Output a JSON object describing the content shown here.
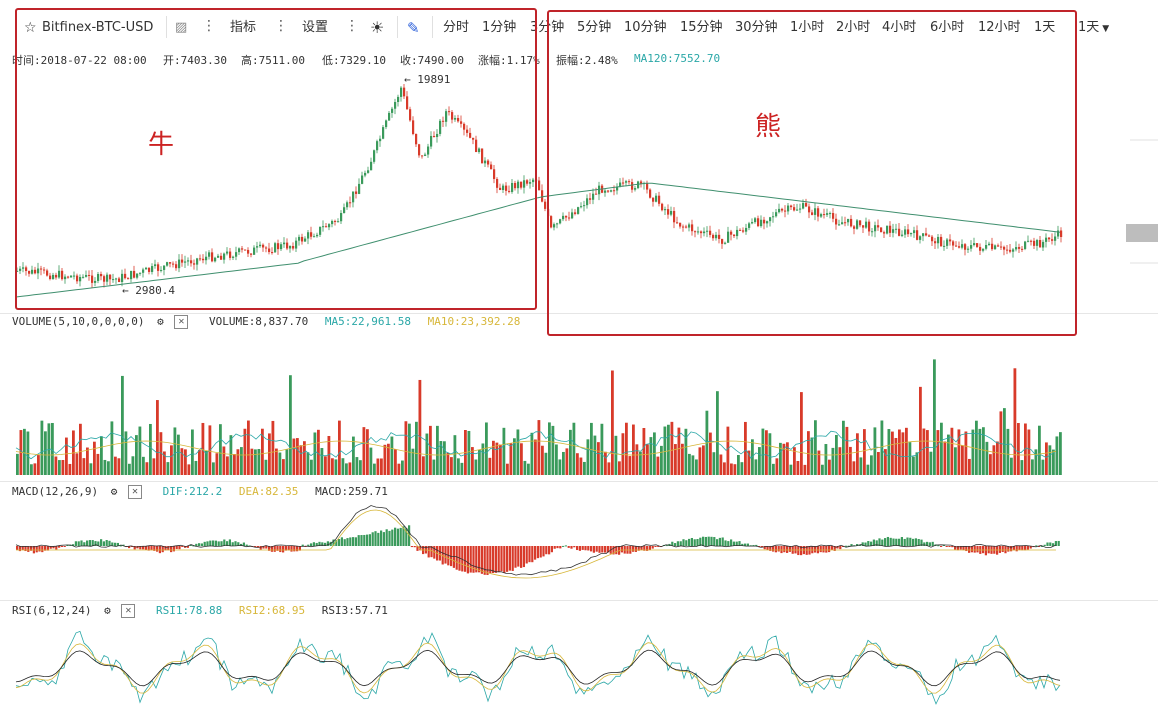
{
  "toolbar": {
    "title": "Bitfinex-BTC-USD",
    "indicators_label": "指标",
    "settings_label": "设置",
    "intervals": [
      "分时",
      "1分钟",
      "3分钟",
      "5分钟",
      "10分钟",
      "15分钟",
      "30分钟",
      "1小时",
      "2小时",
      "4小时",
      "6小时",
      "12小时",
      "1天",
      "1天"
    ]
  },
  "info": {
    "time": "时间:2018-07-22 08:00",
    "open": "开:7403.30",
    "high": "高:7511.00",
    "low": "低:7329.10",
    "close": "收:7490.00",
    "change": "涨幅:1.17%",
    "amplitude": "振幅:2.48%",
    "ma120": "MA120:7552.70"
  },
  "annotations": {
    "bull": "牛",
    "bear": "熊",
    "high_label": "← 19891",
    "low_label": "← 2980.4"
  },
  "volume": {
    "title": "VOLUME(5,10,0,0,0,0)",
    "value": "VOLUME:8,837.70",
    "ma5": "MA5:22,961.58",
    "ma10": "MA10:23,392.28"
  },
  "macd": {
    "title": "MACD(12,26,9)",
    "dif": "DIF:212.2",
    "dea": "DEA:82.35",
    "macd": "MACD:259.71"
  },
  "rsi": {
    "title": "RSI(6,12,24)",
    "rsi1": "RSI1:78.88",
    "rsi2": "RSI2:68.95",
    "rsi3": "RSI3:57.71"
  },
  "colors": {
    "up": "#3a9a5b",
    "down": "#d83a2a",
    "ma": "#3f8f6e",
    "yellow": "#d7b73a",
    "cyan": "#2aa7a7",
    "annotation": "#c0242a"
  }
}
